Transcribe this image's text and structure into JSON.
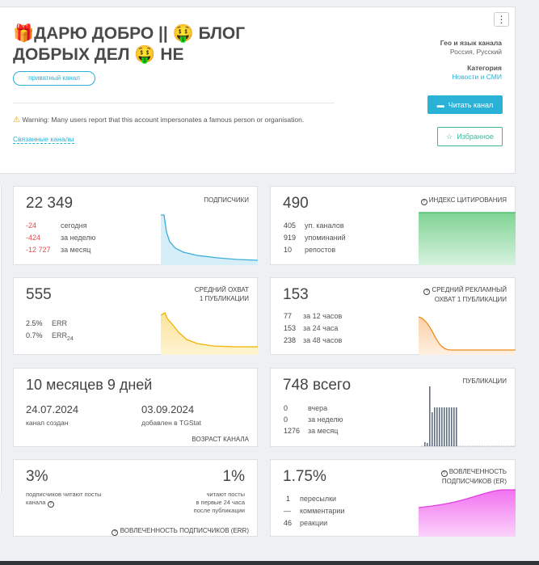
{
  "header": {
    "title_line1": "🎁ДАРЮ ДОБРО || 🤑 БЛОГ",
    "title_line2": "ДОБРЫХ ДЕЛ 🤑 НЕ",
    "private_badge": "приватный канал",
    "warning_text": "Warning: Many users report that this account impersonates a famous person or organisation.",
    "related_link": "Связанные каналы",
    "geo_label": "Гео и язык канала",
    "geo_value": "Россия, Русский",
    "category_label": "Категория",
    "category_value": "Новости и СМИ",
    "read_button": "Читать канал",
    "favorite_button": "Избранное",
    "menu_icon": "kebab-menu-icon"
  },
  "subscribers": {
    "value": "22 349",
    "label": "ПОДПИСЧИКИ",
    "rows": [
      {
        "num": "-24",
        "text": "сегодня"
      },
      {
        "num": "-424",
        "text": "за неделю"
      },
      {
        "num": "-12 727",
        "text": "за месяц"
      }
    ]
  },
  "citation": {
    "value": "490",
    "label": "ИНДЕКС ЦИТИРОВАНИЯ",
    "rows": [
      {
        "num": "405",
        "text": "уп. каналов"
      },
      {
        "num": "919",
        "text": "упоминаний"
      },
      {
        "num": "10",
        "text": "репостов"
      }
    ]
  },
  "reach": {
    "value": "555",
    "label_line1": "СРЕДНИЙ ОХВАТ",
    "label_line2": "1 ПУБЛИКАЦИИ",
    "rows": [
      {
        "num": "2.5%",
        "text": "ERR",
        "sub": ""
      },
      {
        "num": "0.7%",
        "text": "ERR",
        "sub": "24"
      }
    ]
  },
  "ad_reach": {
    "value": "153",
    "label_line1": "СРЕДНИЙ РЕКЛАМНЫЙ",
    "label_line2": "ОХВАТ 1 ПУБЛИКАЦИИ",
    "rows": [
      {
        "num": "77",
        "text": "за 12 часов"
      },
      {
        "num": "153",
        "text": "за 24 часа"
      },
      {
        "num": "238",
        "text": "за 48 часов"
      }
    ]
  },
  "age": {
    "value": "10 месяцев 9 дней",
    "created_date": "24.07.2024",
    "created_label": "канал создан",
    "added_date": "03.09.2024",
    "added_label": "добавлен в TGStat",
    "label": "ВОЗРАСТ КАНАЛА"
  },
  "posts": {
    "value": "748 всего",
    "label": "ПУБЛИКАЦИИ",
    "rows": [
      {
        "num": "0",
        "text": "вчера"
      },
      {
        "num": "0",
        "text": "за неделю"
      },
      {
        "num": "1276",
        "text": "за месяц"
      }
    ]
  },
  "err": {
    "value1": "3%",
    "value1_desc_line1": "подписчиков читают посты",
    "value1_desc_line2": "канала",
    "value2": "1%",
    "value2_desc_line1": "читают посты",
    "value2_desc_line2": "в первые 24 часа",
    "value2_desc_line3": "после публикации",
    "label": "ВОВЛЕЧЕННОСТЬ ПОДПИСЧИКОВ (ERR)"
  },
  "er": {
    "value": "1.75%",
    "label_line1": "ВОВЛЕЧЕННОСТЬ",
    "label_line2": "ПОДПИСЧИКОВ (ER)",
    "rows": [
      {
        "num": "1",
        "text": "пересылки"
      },
      {
        "num": "—",
        "text": "комментарии"
      },
      {
        "num": "46",
        "text": "реакции"
      }
    ]
  },
  "colors": {
    "subscribers": "#3aaed8",
    "citation": "#3cb860",
    "reach": "#f0b400",
    "ad_reach": "#f08a1a",
    "posts": "#607080",
    "er": "#e040e0",
    "accent": "#2ab1d6"
  }
}
